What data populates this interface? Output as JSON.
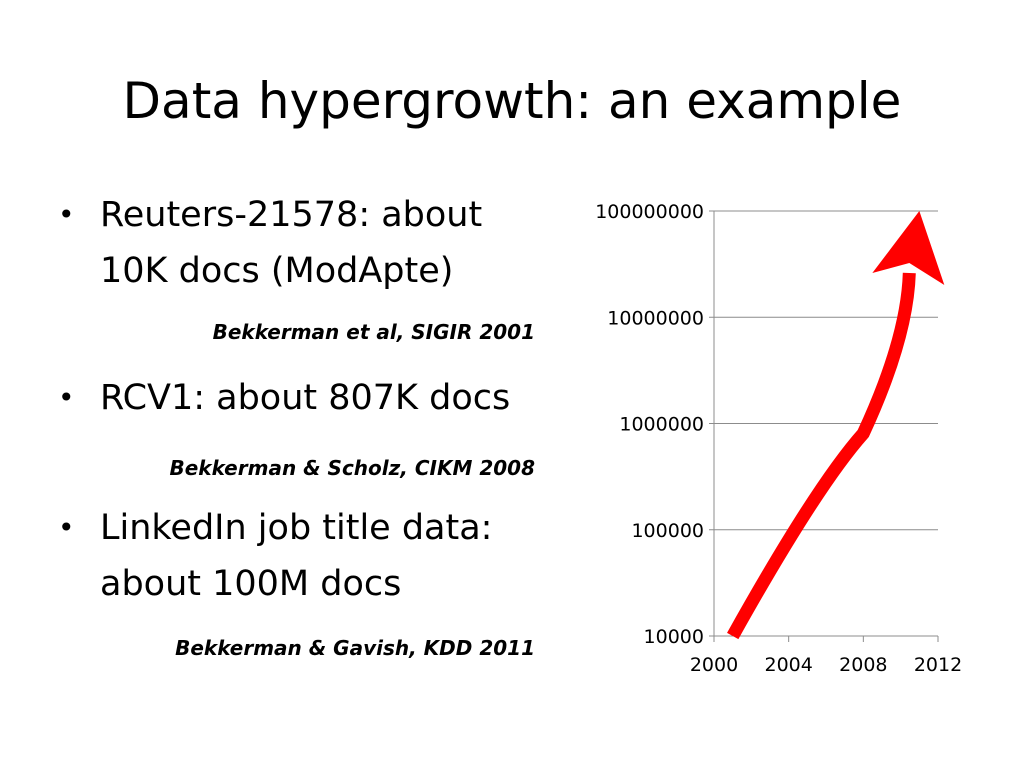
{
  "slide": {
    "title": "Data hypergrowth: an example"
  },
  "bullets": [
    {
      "text": "Reuters-21578: about 10K docs (ModApte)",
      "citation": "Bekkerman et al, SIGIR 2001"
    },
    {
      "text": "RCV1: about 807K docs",
      "citation": "Bekkerman & Scholz, CIKM 2008"
    },
    {
      "text": "LinkedIn job title data: about 100M docs",
      "citation": "Bekkerman & Gavish, KDD 2011"
    }
  ],
  "bullet_symbol": "•",
  "chart_data": {
    "type": "line",
    "title": "",
    "xlabel": "",
    "ylabel": "",
    "yscale": "log",
    "xlim": [
      2000,
      2012
    ],
    "ylim": [
      10000,
      100000000
    ],
    "x_ticks": [
      2000,
      2004,
      2008,
      2012
    ],
    "y_ticks": [
      10000,
      100000,
      1000000,
      10000000,
      100000000
    ],
    "grid": "horizontal",
    "legend": "none",
    "series": [
      {
        "points": [
          {
            "x": 2001,
            "y": 10000
          },
          {
            "x": 2008,
            "y": 807000
          },
          {
            "x": 2011,
            "y": 100000000
          }
        ],
        "color": "#ff0000",
        "style": "thick curved arrow"
      }
    ]
  }
}
